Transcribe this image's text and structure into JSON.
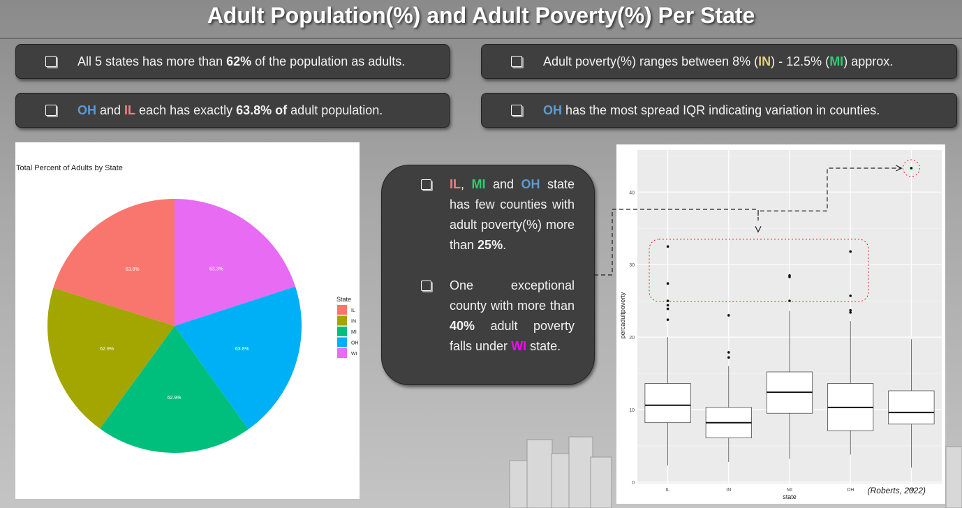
{
  "title": "Adult Population(%) and Adult Poverty(%) Per State",
  "bullets": {
    "b1": {
      "t1": "All 5 states has more than ",
      "t2": "62%",
      "t3": " of the population as adults."
    },
    "b2": {
      "t1": "Adult poverty(%) ranges between 8% (",
      "t2": "IN",
      "t3": ") - 12.5% (",
      "t4": "MI",
      "t5": ") approx."
    },
    "b3": {
      "t1": "OH",
      "t2": " and ",
      "t3": "IL",
      "t4": " each has exactly ",
      "t5": "63.8% of",
      "t6": " adult population."
    },
    "b4": {
      "t1": "OH",
      "t2": " has the most spread IQR indicating variation in counties."
    }
  },
  "callout": {
    "c1": {
      "il": "IL",
      "sep": ", ",
      "mi": "MI",
      "and": " and ",
      "oh": "OH",
      "rest": " state has few counties with adult poverty(%) more than ",
      "pct": "25%",
      "end": "."
    },
    "c2": {
      "t1": "One exceptional county with more than ",
      "pct": "40%",
      "t2": " adult poverty falls under ",
      "wi": "WI",
      "t3": " state."
    }
  },
  "credit": "(Roberts, 2022)",
  "colors": {
    "IL": "#F8766D",
    "IN": "#A3A500",
    "MI": "#00BF7D",
    "OH": "#00B0F6",
    "WI": "#E76BF3"
  },
  "chart_data": [
    {
      "type": "pie",
      "title": "Total Percent of Adults by State",
      "legend_title": "State",
      "legend_position": "right",
      "categories": [
        "IL",
        "IN",
        "MI",
        "OH",
        "WI"
      ],
      "values": [
        63.8,
        62.9,
        62.9,
        63.8,
        63.3
      ],
      "labels": [
        "63.8%",
        "62.9%",
        "62.9%",
        "63.8%",
        "63.3%"
      ]
    },
    {
      "type": "box",
      "xlabel": "state",
      "ylabel": "percadultpoverty",
      "ylim": [
        0,
        44
      ],
      "yticks": [
        0,
        10,
        20,
        30,
        40
      ],
      "categories": [
        "IL",
        "IN",
        "MI",
        "OH",
        "WI"
      ],
      "series": [
        {
          "name": "IL",
          "min": 2.3,
          "q1": 8.2,
          "median": 10.6,
          "q3": 13.6,
          "max": 20.0,
          "outliers": [
            22.4,
            23.9,
            24.4,
            25.0,
            27.4,
            32.5
          ]
        },
        {
          "name": "IN",
          "min": 2.8,
          "q1": 6.1,
          "median": 8.2,
          "q3": 10.3,
          "max": 16.0,
          "outliers": [
            17.2,
            17.9,
            23.0
          ]
        },
        {
          "name": "MI",
          "min": 3.2,
          "q1": 9.5,
          "median": 12.4,
          "q3": 15.2,
          "max": 23.6,
          "outliers": [
            25.0,
            28.3,
            28.5
          ]
        },
        {
          "name": "OH",
          "min": 3.8,
          "q1": 7.1,
          "median": 10.3,
          "q3": 13.6,
          "max": 22.2,
          "outliers": [
            23.4,
            23.7,
            25.7,
            31.8
          ]
        },
        {
          "name": "WI",
          "min": 2.0,
          "q1": 8.0,
          "median": 9.6,
          "q3": 12.6,
          "max": 19.7,
          "outliers": [
            43.3
          ]
        }
      ]
    }
  ]
}
